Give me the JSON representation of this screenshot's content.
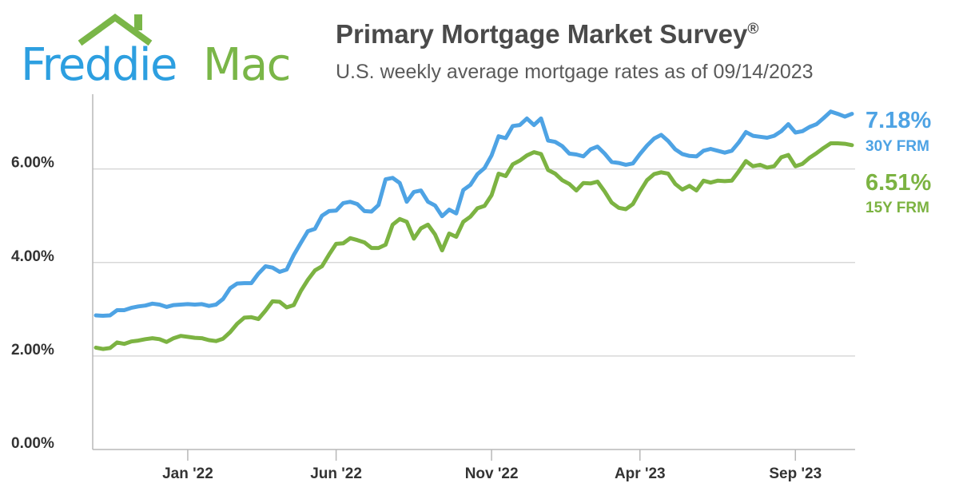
{
  "header": {
    "logo_freddie": "Freddie",
    "logo_mac": "Mac",
    "title": "Primary Mortgage Market Survey",
    "title_mark": "®",
    "subtitle": "U.S. weekly average mortgage rates as of 09/14/2023"
  },
  "colors": {
    "brand_blue": "#2d9fe0",
    "brand_green": "#7ab648",
    "series_30y": "#4ea3e4",
    "series_15y": "#7cb342",
    "grid": "#d8d8d8",
    "axis": "#b8b8b8"
  },
  "chart_data": {
    "type": "line",
    "title": "Primary Mortgage Market Survey®",
    "subtitle": "U.S. weekly average mortgage rates as of 09/14/2023",
    "x_ticks": [
      "Jan '22",
      "Jun '22",
      "Nov '22",
      "Apr '23",
      "Sep '23"
    ],
    "y_ticks": [
      "0.00%",
      "2.00%",
      "4.00%",
      "6.00%"
    ],
    "ylim": [
      0,
      7.6
    ],
    "grid": "horizontal",
    "series": [
      {
        "name": "30Y FRM",
        "end_label": "7.18%",
        "values": [
          2.87,
          2.86,
          2.87,
          2.98,
          2.98,
          3.03,
          3.06,
          3.08,
          3.12,
          3.1,
          3.05,
          3.09,
          3.1,
          3.11,
          3.1,
          3.11,
          3.07,
          3.1,
          3.22,
          3.45,
          3.55,
          3.56,
          3.56,
          3.76,
          3.92,
          3.89,
          3.8,
          3.85,
          4.16,
          4.42,
          4.67,
          4.72,
          5.0,
          5.1,
          5.11,
          5.27,
          5.3,
          5.25,
          5.1,
          5.09,
          5.23,
          5.78,
          5.81,
          5.7,
          5.3,
          5.51,
          5.54,
          5.3,
          5.22,
          4.99,
          5.13,
          5.05,
          5.55,
          5.66,
          5.89,
          6.02,
          6.29,
          6.7,
          6.66,
          6.92,
          6.94,
          7.08,
          6.94,
          7.08,
          6.61,
          6.58,
          6.49,
          6.33,
          6.31,
          6.27,
          6.42,
          6.48,
          6.33,
          6.15,
          6.13,
          6.09,
          6.12,
          6.32,
          6.5,
          6.65,
          6.73,
          6.6,
          6.42,
          6.32,
          6.28,
          6.27,
          6.39,
          6.43,
          6.39,
          6.35,
          6.39,
          6.57,
          6.79,
          6.71,
          6.69,
          6.67,
          6.71,
          6.81,
          6.96,
          6.78,
          6.81,
          6.9,
          6.96,
          7.09,
          7.23,
          7.18,
          7.12,
          7.18
        ]
      },
      {
        "name": "15Y FRM",
        "end_label": "6.51%",
        "values": [
          2.18,
          2.15,
          2.17,
          2.29,
          2.26,
          2.31,
          2.33,
          2.36,
          2.38,
          2.36,
          2.3,
          2.38,
          2.43,
          2.41,
          2.39,
          2.38,
          2.34,
          2.32,
          2.37,
          2.51,
          2.69,
          2.82,
          2.83,
          2.79,
          2.97,
          3.17,
          3.16,
          3.04,
          3.09,
          3.39,
          3.63,
          3.83,
          3.92,
          4.17,
          4.4,
          4.41,
          4.52,
          4.48,
          4.43,
          4.31,
          4.31,
          4.38,
          4.81,
          4.93,
          4.87,
          4.51,
          4.73,
          4.81,
          4.6,
          4.26,
          4.62,
          4.55,
          4.87,
          4.98,
          5.16,
          5.21,
          5.44,
          5.9,
          5.85,
          6.1,
          6.18,
          6.29,
          6.36,
          6.32,
          5.98,
          5.9,
          5.76,
          5.68,
          5.54,
          5.7,
          5.69,
          5.73,
          5.52,
          5.28,
          5.17,
          5.14,
          5.25,
          5.52,
          5.76,
          5.89,
          5.93,
          5.9,
          5.68,
          5.56,
          5.64,
          5.54,
          5.75,
          5.71,
          5.75,
          5.74,
          5.75,
          5.95,
          6.17,
          6.06,
          6.09,
          6.03,
          6.06,
          6.25,
          6.3,
          6.06,
          6.11,
          6.24,
          6.34,
          6.45,
          6.55,
          6.55,
          6.54,
          6.51
        ]
      }
    ]
  }
}
